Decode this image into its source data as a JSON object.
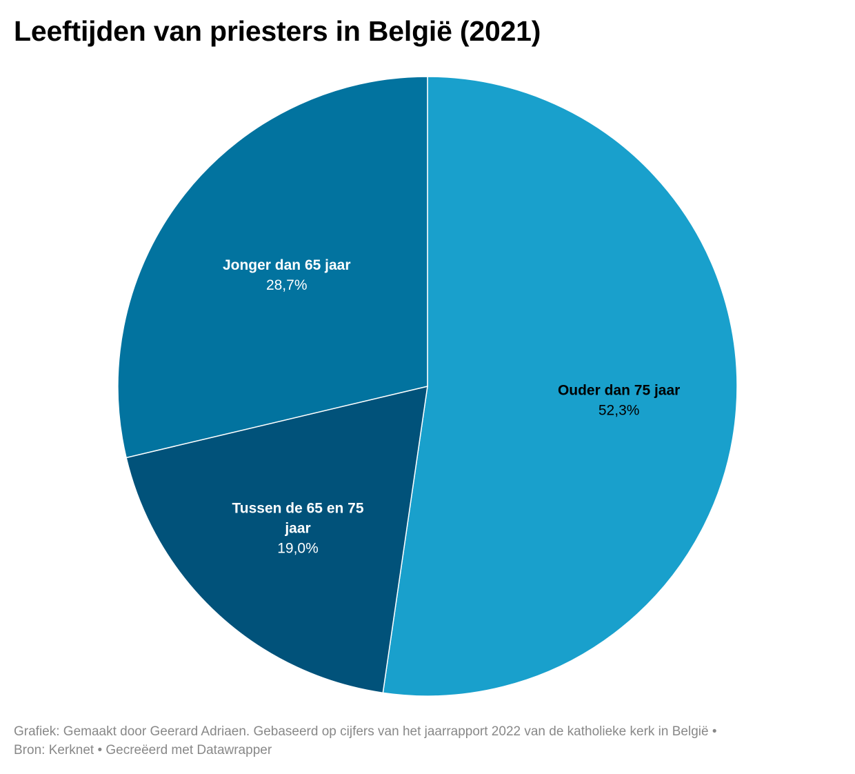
{
  "chart_data": {
    "type": "pie",
    "title": "Leeftijden van priesters in België (2021)",
    "slices": [
      {
        "label": "Ouder dan 75 jaar",
        "value": 52.3,
        "value_label": "52,3%",
        "color": "#19a0cc",
        "label_color": "#000000"
      },
      {
        "label": "Tussen de 65 en 75 jaar",
        "label_lines": [
          "Tussen de 65 en 75",
          "jaar"
        ],
        "value": 19.0,
        "value_label": "19,0%",
        "color": "#01527a",
        "label_color": "#ffffff"
      },
      {
        "label": "Jonger dan 65 jaar",
        "value": 28.7,
        "value_label": "28,7%",
        "color": "#02739f",
        "label_color": "#ffffff"
      }
    ]
  },
  "footer": {
    "line1": "Grafiek: Gemaakt door Geerard Adriaen. Gebaseerd op cijfers van het jaarrapport 2022 van de katholieke kerk in België •",
    "line2": "Bron: Kerknet • Gecreëerd met Datawrapper"
  }
}
